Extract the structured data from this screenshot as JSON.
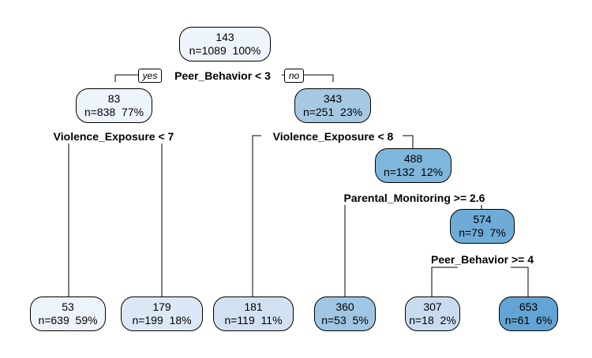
{
  "colors": {
    "very_light": "#eef4fb",
    "light": "#dce8f5",
    "light2": "#d2e1f1",
    "pale": "#c9dcef",
    "mid": "#a6c9e3",
    "mid2": "#9fc6e2",
    "strong": "#7fb6dc",
    "strong2": "#6eabd6",
    "deep": "#62a4d3"
  },
  "tags": {
    "yes": "yes",
    "no": "no"
  },
  "nodes": [
    {
      "id": "root",
      "value": "143",
      "stats": "n=1089  100%",
      "color": "very_light"
    },
    {
      "id": "n2",
      "value": "83",
      "stats": "n=838  77%",
      "color": "very_light"
    },
    {
      "id": "n3",
      "value": "343",
      "stats": "n=251  23%",
      "color": "mid"
    },
    {
      "id": "n7",
      "value": "488",
      "stats": "n=132  12%",
      "color": "strong"
    },
    {
      "id": "n15",
      "value": "574",
      "stats": "n=79  7%",
      "color": "strong2"
    },
    {
      "id": "l4",
      "value": "53",
      "stats": "n=639  59%",
      "color": "very_light"
    },
    {
      "id": "l5",
      "value": "179",
      "stats": "n=199  18%",
      "color": "light"
    },
    {
      "id": "l6",
      "value": "181",
      "stats": "n=119  11%",
      "color": "light2"
    },
    {
      "id": "l14",
      "value": "360",
      "stats": "n=53  5%",
      "color": "mid2"
    },
    {
      "id": "l30",
      "value": "307",
      "stats": "n=18  2%",
      "color": "pale"
    },
    {
      "id": "l31",
      "value": "653",
      "stats": "n=61  6%",
      "color": "deep"
    }
  ],
  "splits": [
    {
      "id": "s-root",
      "label": "Peer_Behavior < 3"
    },
    {
      "id": "s-n2",
      "label": "Violence_Exposure < 7"
    },
    {
      "id": "s-n3",
      "label": "Violence_Exposure < 8"
    },
    {
      "id": "s-n7",
      "label": "Parental_Monitoring >= 2.6"
    },
    {
      "id": "s-n15",
      "label": "Peer_Behavior >= 4"
    }
  ]
}
